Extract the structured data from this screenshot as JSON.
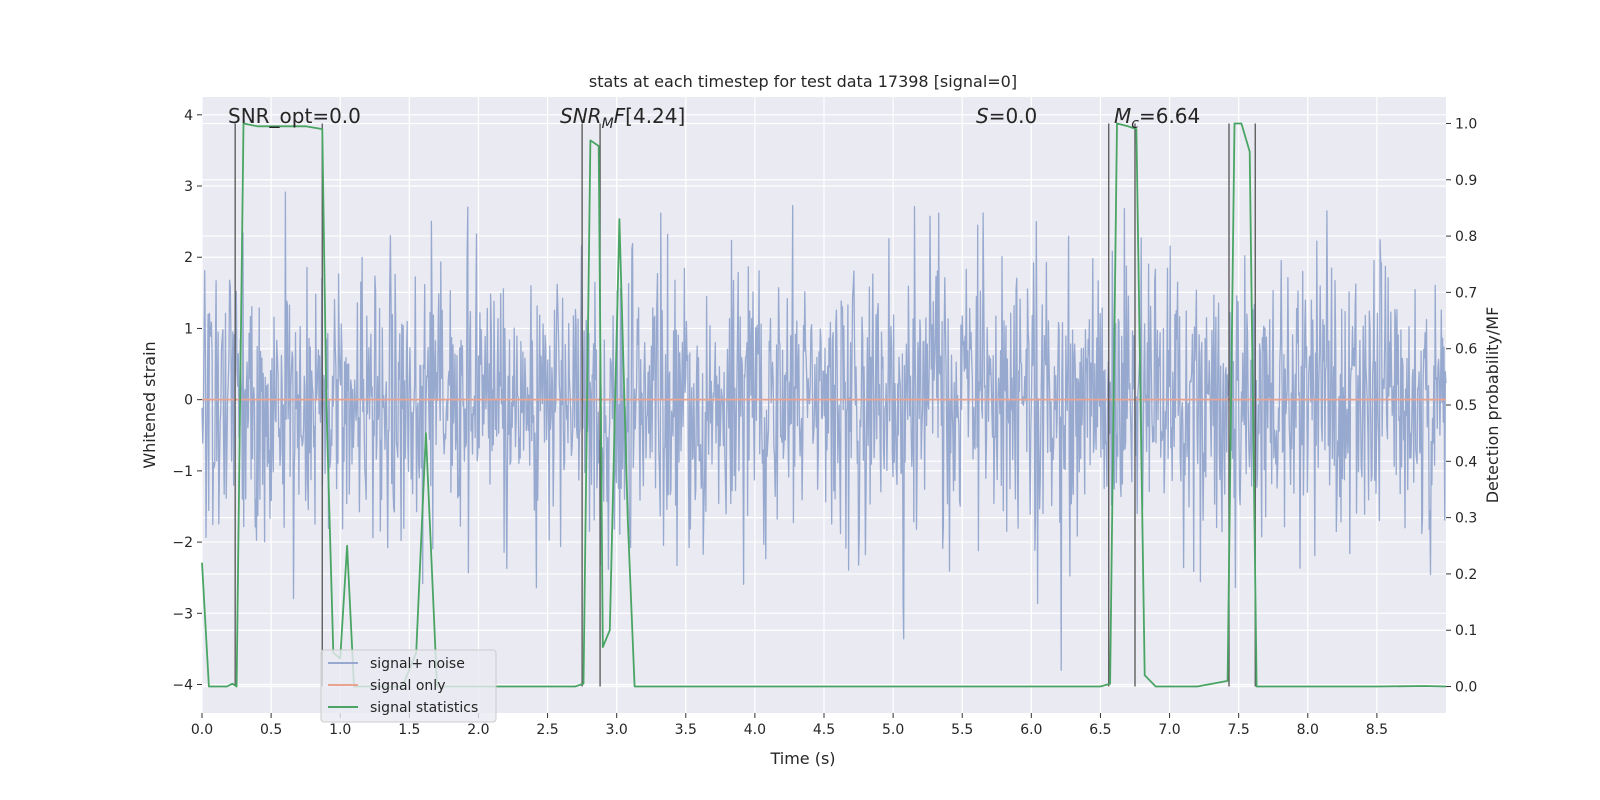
{
  "chart_data": {
    "type": "line",
    "title": "stats at each timestep for test data 17398 [signal=0]",
    "xlabel": "Time (s)",
    "ylabel": "Whitened strain",
    "y2label": "Detection probability/MF",
    "xlim": [
      0,
      9
    ],
    "ylim": [
      -4.4,
      4.25
    ],
    "y2lim": [
      -0.047,
      1.047
    ],
    "xticks": [
      "0.0",
      "0.5",
      "1.0",
      "1.5",
      "2.0",
      "2.5",
      "3.0",
      "3.5",
      "4.0",
      "4.5",
      "5.0",
      "5.5",
      "6.0",
      "6.5",
      "7.0",
      "7.5",
      "8.0",
      "8.5"
    ],
    "yticks": [
      "4",
      "3",
      "2",
      "1",
      "0",
      "−1",
      "−2",
      "−3",
      "−4"
    ],
    "y2ticks": [
      "1.0",
      "0.9",
      "0.8",
      "0.7",
      "0.6",
      "0.5",
      "0.4",
      "0.3",
      "0.2",
      "0.1",
      "0.0"
    ],
    "grid": true,
    "legend_position": "lower-left",
    "annotations": {
      "snr_opt": "SNR_opt=0.0",
      "snr_mf": "[4.24]",
      "s": "=0.0",
      "mc": "=6.64"
    },
    "series": [
      {
        "name": "signal+ noise",
        "color": "#97a9cf",
        "kind": "noise",
        "sigma": 1.0,
        "n_points": 1850,
        "seed": 17398
      },
      {
        "name": "signal only",
        "color": "#e8a490",
        "x": [
          0,
          9
        ],
        "y": [
          0,
          0
        ]
      },
      {
        "name": "signal statistics",
        "color": "#4aa564",
        "axis": "right",
        "x": [
          0.0,
          0.05,
          0.1,
          0.18,
          0.22,
          0.25,
          0.3,
          0.4,
          0.6,
          0.75,
          0.87,
          0.9,
          0.95,
          1.0,
          1.05,
          1.1,
          1.15,
          1.3,
          1.45,
          1.55,
          1.62,
          1.7,
          1.8,
          2.0,
          2.2,
          2.5,
          2.7,
          2.76,
          2.81,
          2.87,
          2.9,
          2.95,
          3.02,
          3.08,
          3.13,
          3.2,
          3.5,
          4.0,
          5.0,
          6.0,
          6.5,
          6.57,
          6.62,
          6.7,
          6.76,
          6.82,
          6.9,
          7.0,
          7.2,
          7.42,
          7.47,
          7.52,
          7.58,
          7.63,
          7.7,
          8.0,
          8.5,
          8.85,
          9.0
        ],
        "y": [
          0.22,
          0.0,
          0.0,
          0.0,
          0.005,
          0.0,
          1.0,
          0.995,
          0.995,
          0.995,
          0.99,
          0.5,
          0.06,
          0.05,
          0.25,
          0.0,
          0.0,
          0.0,
          0.0,
          0.06,
          0.45,
          0.0,
          0.0,
          0.0,
          0.0,
          0.0,
          0.0,
          0.005,
          0.97,
          0.96,
          0.07,
          0.1,
          0.83,
          0.3,
          0.0,
          0.0,
          0.0,
          0.0,
          0.0,
          0.0,
          0.0,
          0.005,
          1.0,
          0.995,
          0.99,
          0.02,
          0.0,
          0.0,
          0.0,
          0.01,
          1.0,
          1.0,
          0.95,
          0.0,
          0.0,
          0.0,
          0.0,
          0.001,
          0.0
        ]
      }
    ],
    "vlines": [
      0.24,
      0.87,
      2.75,
      2.88,
      6.56,
      6.75,
      7.43,
      7.62
    ]
  },
  "legend": {
    "items": [
      "signal+ noise",
      "signal only",
      "signal statistics"
    ]
  }
}
